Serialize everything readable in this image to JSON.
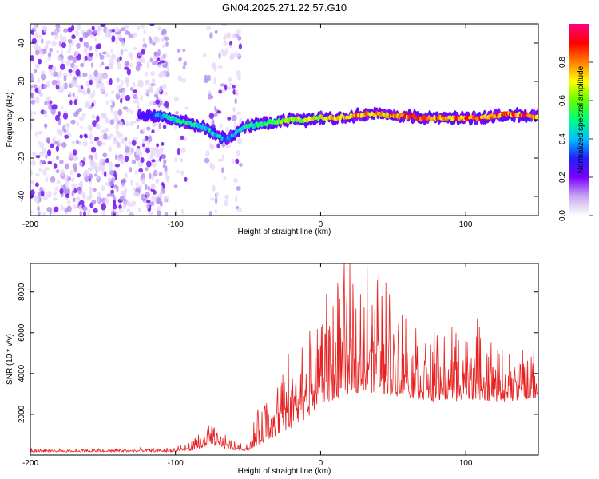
{
  "chart_data": [
    {
      "type": "heatmap",
      "title": "GN04.2025.271.22.57.G10",
      "xlabel": "Height of straight line (km)",
      "ylabel": "Frequency (Hz)",
      "xlim": [
        -200,
        150
      ],
      "ylim": [
        -50,
        50
      ],
      "xticks": [
        -200,
        -100,
        0,
        100
      ],
      "yticks": [
        -40,
        -20,
        0,
        20,
        40
      ],
      "colorbar": {
        "label": "Normalized spectral amplitude",
        "range": [
          0,
          1
        ],
        "ticks": [
          "0.0",
          "0.2",
          "0.4",
          "0.6",
          "0.8"
        ],
        "tick_values": [
          0,
          0.2,
          0.4,
          0.6,
          0.8
        ],
        "colormap": [
          "#ffffff",
          "#c8a8f0",
          "#7a00ff",
          "#2020ff",
          "#00c0ff",
          "#00ff80",
          "#60ff00",
          "#ffff00",
          "#ff8000",
          "#ff0000",
          "#ff0080"
        ]
      },
      "ridge": {
        "x": [
          -120,
          -110,
          -100,
          -90,
          -80,
          -70,
          -65,
          -60,
          -55,
          -50,
          -40,
          -30,
          -20,
          -10,
          0,
          10,
          20,
          30,
          40,
          50,
          60,
          70,
          80,
          90,
          100,
          110,
          120,
          130,
          140,
          150
        ],
        "y": [
          2,
          2,
          0,
          -2,
          -4,
          -9,
          -10,
          -8,
          -5,
          -3,
          -2,
          -1,
          0,
          0,
          1,
          1,
          2,
          3,
          3,
          2,
          2,
          1,
          1,
          1,
          1,
          1,
          2,
          3,
          2,
          2
        ],
        "amplitude": [
          0.3,
          0.45,
          0.5,
          0.5,
          0.5,
          0.45,
          0.4,
          0.45,
          0.5,
          0.5,
          0.55,
          0.6,
          0.7,
          0.7,
          0.75,
          0.8,
          0.85,
          0.85,
          0.85,
          0.85,
          0.9,
          0.9,
          0.9,
          0.9,
          0.9,
          0.9,
          0.9,
          0.9,
          0.9,
          0.85
        ]
      }
    },
    {
      "type": "line",
      "title": "",
      "xlabel": "Height of straight line (km)",
      "ylabel": "SNR (10 * v/v)",
      "xlim": [
        -200,
        150
      ],
      "ylim": [
        0,
        9400
      ],
      "xticks": [
        -200,
        -100,
        0,
        100
      ],
      "yticks": [
        2000,
        4000,
        6000,
        8000
      ],
      "series": [
        {
          "name": "SNR",
          "color": "#e82020",
          "envelope_x": [
            -200,
            -150,
            -100,
            -90,
            -80,
            -75,
            -70,
            -60,
            -50,
            -40,
            -30,
            -20,
            -10,
            0,
            10,
            20,
            30,
            40,
            50,
            60,
            70,
            80,
            90,
            100,
            110,
            120,
            130,
            140,
            150
          ],
          "envelope_baseline": [
            150,
            150,
            150,
            200,
            350,
            500,
            400,
            250,
            200,
            600,
            900,
            1200,
            1800,
            2400,
            2700,
            3000,
            3100,
            3000,
            2900,
            2800,
            2700,
            2600,
            2600,
            2700,
            2700,
            2600,
            2600,
            2700,
            2800
          ],
          "envelope_spread": [
            150,
            150,
            200,
            400,
            800,
            900,
            700,
            400,
            300,
            2000,
            2800,
            3200,
            3600,
            4500,
            5000,
            5500,
            6000,
            5500,
            4500,
            3800,
            3200,
            3000,
            3000,
            3200,
            3000,
            2400,
            2200,
            2200,
            1800
          ],
          "peaks": [
            {
              "x": 32,
              "y": 9300
            },
            {
              "x": 43,
              "y": 8600
            },
            {
              "x": 18,
              "y": 7700
            },
            {
              "x": 100,
              "y": 5600
            },
            {
              "x": -78,
              "y": 1300
            }
          ]
        }
      ]
    }
  ]
}
